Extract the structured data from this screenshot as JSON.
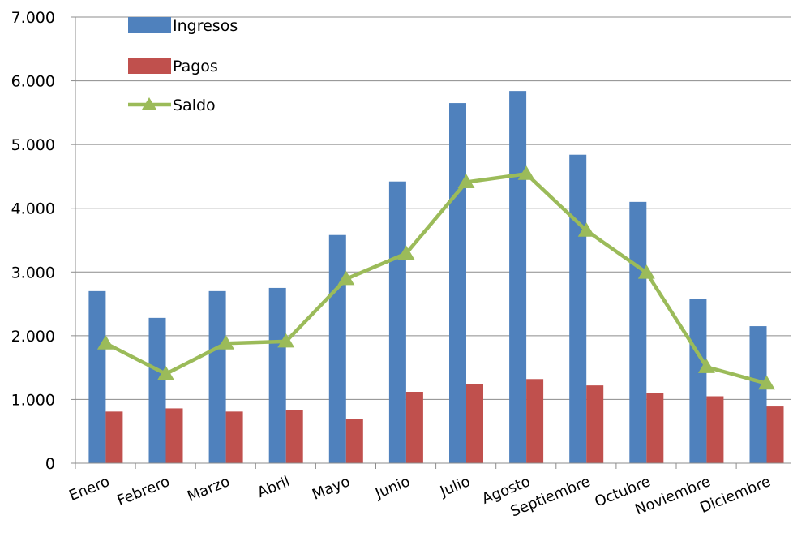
{
  "chart_data": {
    "type": "bar",
    "categories": [
      "Enero",
      "Febrero",
      "Marzo",
      "Abril",
      "Mayo",
      "Junio",
      "Julio",
      "Agosto",
      "Septiembre",
      "Octubre",
      "Noviembre",
      "Diciembre"
    ],
    "series": [
      {
        "name": "Ingresos",
        "type": "bar",
        "color": "#4f81bd",
        "values": [
          2700,
          2280,
          2700,
          2750,
          3580,
          4420,
          5650,
          5840,
          4840,
          4100,
          2580,
          2150
        ]
      },
      {
        "name": "Pagos",
        "type": "bar",
        "color": "#c0504d",
        "values": [
          810,
          860,
          810,
          840,
          690,
          1120,
          1240,
          1320,
          1220,
          1100,
          1050,
          890
        ]
      },
      {
        "name": "Saldo",
        "type": "line",
        "marker": "triangle",
        "color": "#9bbb59",
        "values": [
          1880,
          1400,
          1880,
          1910,
          2890,
          3290,
          4410,
          4540,
          3650,
          2990,
          1510,
          1250
        ]
      }
    ],
    "yticks": [
      "0",
      "1.000",
      "2.000",
      "3.000",
      "4.000",
      "5.000",
      "6.000",
      "7.000"
    ],
    "ylim": [
      0,
      7000
    ],
    "grid": true,
    "legend": "top-left"
  }
}
